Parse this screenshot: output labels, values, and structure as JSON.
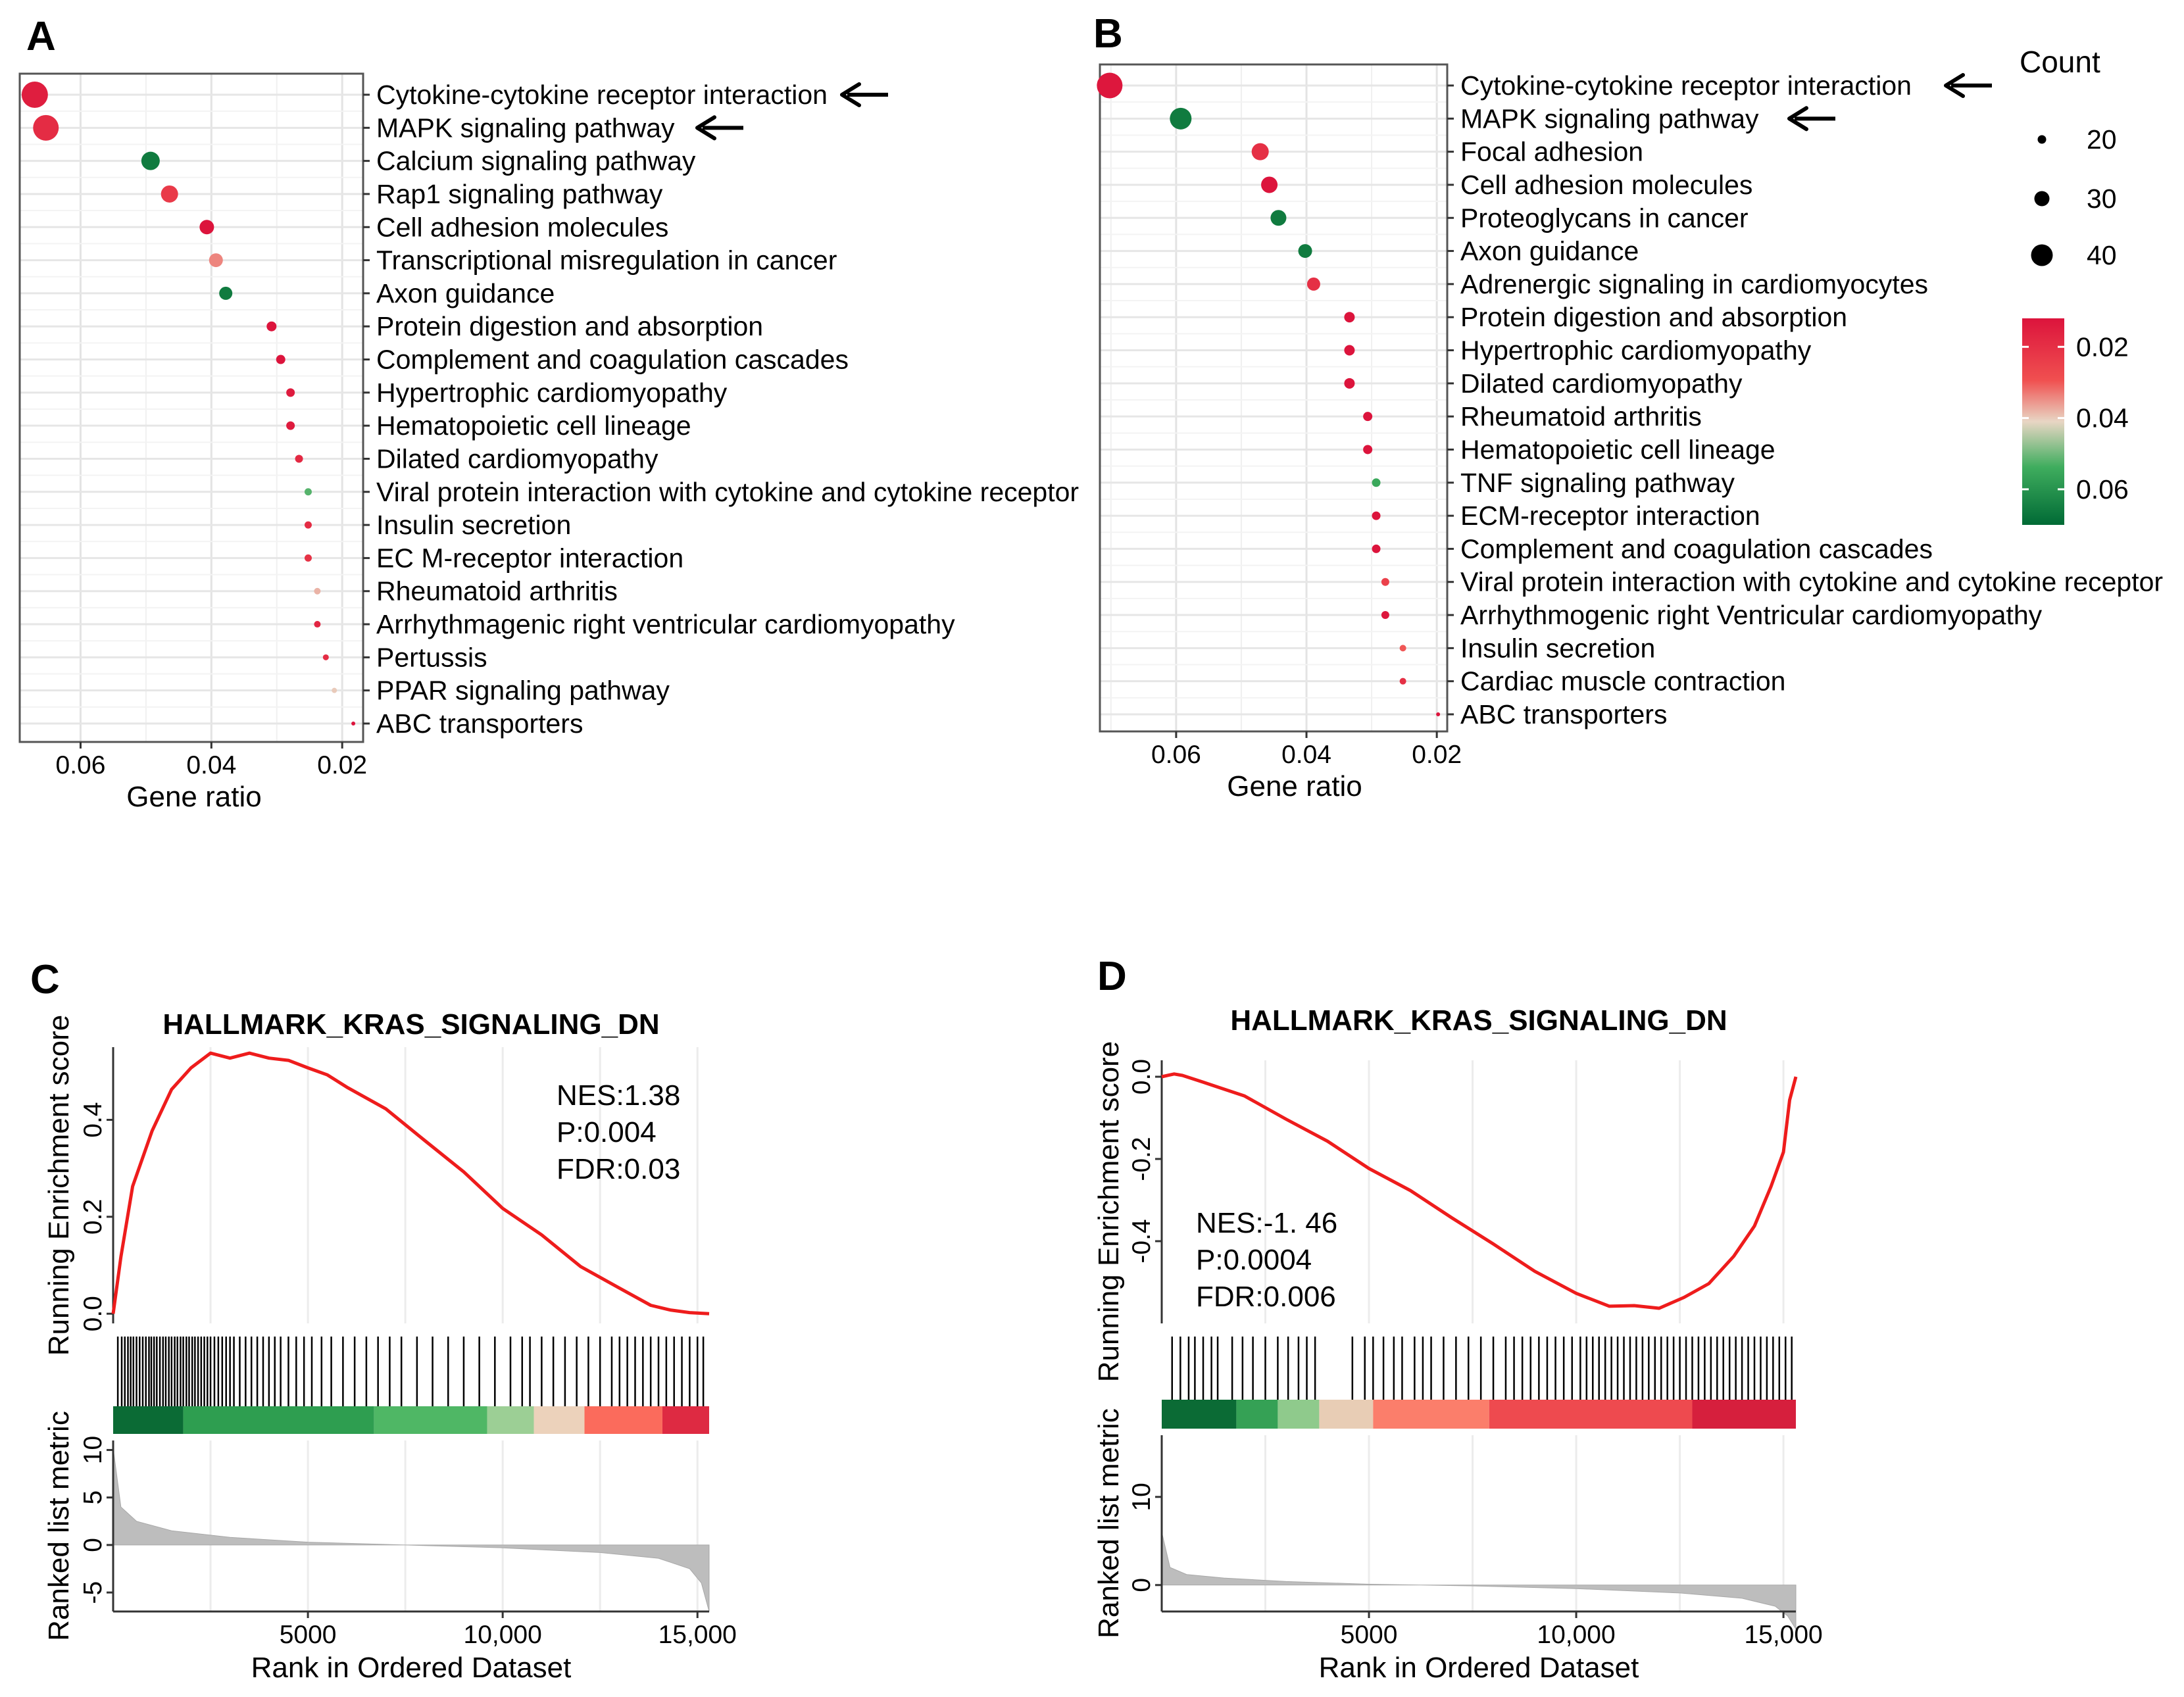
{
  "legend": {
    "count_title": "Count",
    "count_values": [
      20,
      30,
      40
    ],
    "count_labels": [
      "20",
      "30",
      "40"
    ],
    "color_labels": [
      "0.02",
      "0.04",
      "0.06"
    ],
    "color_values": [
      0.02,
      0.04,
      0.06
    ],
    "color_range": [
      0.012,
      0.07
    ],
    "colors": {
      "low": "#dc143c",
      "mid": "#e8d6c4",
      "high": "#006a35",
      "tint": "#f05050"
    }
  },
  "chart_data": [
    {
      "id": "A",
      "type": "scatter",
      "panel_letter": "A",
      "xlabel": "Gene ratio",
      "xlim": [
        0.0693,
        0.0168
      ],
      "xticks": [
        0.06,
        0.04,
        0.02
      ],
      "xtick_labels": [
        "0.06",
        "0.04",
        "0.02"
      ],
      "annotations": [
        "Cytokine-cytokine receptor interaction",
        "MAPK signaling pathway"
      ],
      "categories": [
        "Cytokine-cytokine receptor interaction",
        "MAPK signaling pathway",
        "Calcium signaling pathway",
        "Rap1 signaling pathway",
        "Cell adhesion molecules",
        "Transcriptional misregulation in cancer",
        "Axon guidance",
        "Protein digestion and absorption",
        "Complement and coagulation cascades",
        "Hypertrophic cardiomyopathy",
        "Hematopoietic cell lineage",
        "Dilated cardiomyopathy",
        "Viral protein interaction with cytokine and cytokine receptor",
        "Insulin secretion",
        "EC M-receptor interaction",
        "Rheumatoid arthritis",
        "Arrhythmagenic right ventricular cardiomyopathy",
        "Pertussis",
        "PPAR signaling pathway",
        "ABC transporters"
      ],
      "gene_ratio": [
        0.067,
        0.0653,
        0.0493,
        0.0464,
        0.0407,
        0.0393,
        0.0378,
        0.0308,
        0.0294,
        0.0279,
        0.0279,
        0.0266,
        0.0252,
        0.0252,
        0.0252,
        0.0238,
        0.0238,
        0.0225,
        0.0212,
        0.0183
      ],
      "count": [
        47,
        46,
        35,
        33,
        29,
        28,
        27,
        22,
        21,
        20,
        20,
        19,
        18,
        18,
        18,
        17,
        17,
        16,
        15,
        13
      ],
      "pvalue": [
        0.015,
        0.019,
        0.066,
        0.023,
        0.012,
        0.034,
        0.066,
        0.012,
        0.012,
        0.014,
        0.014,
        0.018,
        0.052,
        0.019,
        0.021,
        0.038,
        0.017,
        0.019,
        0.04,
        0.012
      ]
    },
    {
      "id": "B",
      "type": "scatter",
      "panel_letter": "B",
      "xlabel": "Gene ratio",
      "xlim": [
        0.0717,
        0.0184
      ],
      "xticks": [
        0.06,
        0.04,
        0.02
      ],
      "xtick_labels": [
        "0.06",
        "0.04",
        "0.02"
      ],
      "annotations": [
        "Cytokine-cytokine receptor interaction",
        "MAPK signaling pathway"
      ],
      "categories": [
        "Cytokine-cytokine receptor interaction",
        "MAPK signaling pathway",
        "Focal adhesion",
        "Cell adhesion molecules",
        "Proteoglycans in cancer",
        "Axon guidance",
        "Adrenergic signaling in cardiomyocytes",
        "Protein digestion and absorption",
        "Hypertrophic cardiomyopathy",
        "Dilated cardiomyopathy",
        "Rheumatoid arthritis",
        "Hematopoietic cell lineage",
        "TNF signaling pathway",
        "ECM-receptor interaction",
        "Complement and coagulation cascades",
        "Viral protein interaction with cytokine and cytokine receptor",
        "Arrhythmogenic right Ventricular cardiomyopathy",
        "Insulin secretion",
        "Cardiac muscle contraction",
        "ABC transporters"
      ],
      "gene_ratio": [
        0.0702,
        0.0593,
        0.0471,
        0.0457,
        0.0443,
        0.0402,
        0.0389,
        0.0334,
        0.0334,
        0.0334,
        0.0306,
        0.0306,
        0.0293,
        0.0293,
        0.0293,
        0.0279,
        0.0279,
        0.0252,
        0.0252,
        0.0198
      ],
      "count": [
        46,
        40,
        33,
        32,
        31,
        28,
        27,
        23,
        23,
        23,
        21,
        21,
        20,
        20,
        20,
        19,
        19,
        17,
        17,
        13
      ],
      "pvalue": [
        0.013,
        0.066,
        0.02,
        0.012,
        0.066,
        0.066,
        0.02,
        0.012,
        0.012,
        0.012,
        0.012,
        0.012,
        0.055,
        0.012,
        0.012,
        0.025,
        0.013,
        0.03,
        0.02,
        0.012
      ]
    },
    {
      "id": "C",
      "type": "line",
      "panel_letter": "C",
      "title": "HALLMARK_KRAS_SIGNALING_DN",
      "stats": [
        "NES:1.38",
        "P:0.004",
        "FDR:0.03"
      ],
      "ylabel_es": "Running Enrichment score",
      "ylabel_metric": "Ranked list metric",
      "xlabel": "Rank in Ordered Dataset",
      "xlim": [
        0,
        15300
      ],
      "xticks": [
        5000,
        10000,
        15000
      ],
      "xtick_labels": [
        "5000",
        "10,000",
        "15,000"
      ],
      "es_ylim": [
        -0.02,
        0.55
      ],
      "es_yticks": [
        0.0,
        0.2,
        0.4
      ],
      "es_ytick_labels": [
        "0.0",
        "0.2",
        "0.4"
      ],
      "es_x": [
        0,
        200,
        500,
        1000,
        1500,
        2000,
        2500,
        3000,
        3500,
        4000,
        4500,
        5000,
        5500,
        6000,
        7000,
        8000,
        9000,
        10000,
        11000,
        12000,
        13000,
        13800,
        14300,
        14800,
        15300
      ],
      "es_y": [
        0.0,
        0.12,
        0.26,
        0.38,
        0.46,
        0.51,
        0.535,
        0.53,
        0.535,
        0.53,
        0.52,
        0.51,
        0.49,
        0.47,
        0.42,
        0.36,
        0.29,
        0.22,
        0.16,
        0.1,
        0.05,
        0.02,
        0.005,
        0.005,
        0.0
      ],
      "metric_ylim": [
        -7,
        11
      ],
      "metric_yticks": [
        -5,
        0,
        5,
        10
      ],
      "metric_ytick_labels": [
        "-5",
        "0",
        "5",
        "10"
      ],
      "metric_x": [
        0,
        200,
        600,
        1500,
        3000,
        5000,
        7500,
        10000,
        12500,
        14000,
        14800,
        15100,
        15300
      ],
      "metric_y": [
        10.2,
        4.0,
        2.5,
        1.5,
        0.8,
        0.3,
        0.0,
        -0.3,
        -0.8,
        -1.4,
        -2.5,
        -4.0,
        -7.0
      ],
      "heat_segments": [
        {
          "from": 0,
          "to": 1800,
          "color": "#0b6b35"
        },
        {
          "from": 1800,
          "to": 6700,
          "color": "#2e9e50"
        },
        {
          "from": 6700,
          "to": 9600,
          "color": "#4fb765"
        },
        {
          "from": 9600,
          "to": 10800,
          "color": "#9ccf95"
        },
        {
          "from": 10800,
          "to": 12100,
          "color": "#ecd2bb"
        },
        {
          "from": 12100,
          "to": 14100,
          "color": "#fb6b5c"
        },
        {
          "from": 14100,
          "to": 15300,
          "color": "#de2a42"
        }
      ],
      "hit_ranks": [
        120,
        220,
        300,
        380,
        450,
        520,
        600,
        680,
        760,
        840,
        920,
        980,
        1050,
        1120,
        1200,
        1280,
        1350,
        1430,
        1500,
        1580,
        1650,
        1730,
        1800,
        1880,
        1950,
        2030,
        2100,
        2180,
        2260,
        2340,
        2420,
        2500,
        2600,
        2700,
        2800,
        2900,
        3000,
        3100,
        3250,
        3400,
        3550,
        3700,
        3850,
        4000,
        4150,
        4300,
        4500,
        4700,
        4900,
        5100,
        5350,
        5600,
        5900,
        6200,
        6500,
        6800,
        7100,
        7400,
        7800,
        8200,
        8600,
        9000,
        9400,
        9800,
        10200,
        10500,
        10700,
        11000,
        11300,
        11600,
        11900,
        12200,
        12500,
        12800,
        13000,
        13200,
        13400,
        13600,
        13800,
        14000,
        14200,
        14400,
        14600,
        14800,
        15000,
        15150
      ]
    },
    {
      "id": "D",
      "type": "line",
      "panel_letter": "D",
      "title": "HALLMARK_KRAS_SIGNALING_DN",
      "stats": [
        "NES:-1. 46",
        "P:0.0004",
        "FDR:0.006"
      ],
      "ylabel_es": "Running Enrichment score",
      "ylabel_metric": "Ranked list metric",
      "xlabel": "Rank in Ordered Dataset",
      "xlim": [
        0,
        15300
      ],
      "xticks": [
        5000,
        10000,
        15000
      ],
      "xtick_labels": [
        "5000",
        "10,000",
        "15,000"
      ],
      "es_ylim": [
        -0.6,
        0.04
      ],
      "es_yticks": [
        -0.4,
        -0.2,
        0.0
      ],
      "es_ytick_labels": [
        "-0.4",
        "-0.2",
        "0.0"
      ],
      "es_x": [
        0,
        300,
        500,
        1000,
        2000,
        3000,
        4000,
        5000,
        6000,
        7000,
        8000,
        9000,
        10000,
        10800,
        11400,
        12000,
        12600,
        13200,
        13800,
        14300,
        14700,
        15000,
        15150,
        15300
      ],
      "es_y": [
        0.0,
        0.01,
        0.0,
        -0.01,
        -0.05,
        -0.1,
        -0.16,
        -0.22,
        -0.28,
        -0.34,
        -0.41,
        -0.47,
        -0.53,
        -0.555,
        -0.56,
        -0.56,
        -0.54,
        -0.5,
        -0.44,
        -0.36,
        -0.27,
        -0.18,
        -0.06,
        0.0
      ],
      "metric_ylim": [
        -3,
        17
      ],
      "metric_yticks": [
        0,
        10
      ],
      "metric_ytick_labels": [
        "0",
        "10"
      ],
      "metric_x": [
        0,
        200,
        600,
        1500,
        3000,
        5000,
        7500,
        10000,
        12500,
        14000,
        14800,
        15100,
        15300
      ],
      "metric_y": [
        6.0,
        2.0,
        1.2,
        0.8,
        0.4,
        0.1,
        -0.1,
        -0.4,
        -0.9,
        -1.5,
        -2.4,
        -3.5,
        -5.0
      ],
      "heat_segments": [
        {
          "from": 0,
          "to": 1800,
          "color": "#0b6b35"
        },
        {
          "from": 1800,
          "to": 2800,
          "color": "#35a155"
        },
        {
          "from": 2800,
          "to": 3800,
          "color": "#8fca8c"
        },
        {
          "from": 3800,
          "to": 5100,
          "color": "#e8cdb5"
        },
        {
          "from": 5100,
          "to": 7900,
          "color": "#fb7e6b"
        },
        {
          "from": 7900,
          "to": 12800,
          "color": "#ee4a4f"
        },
        {
          "from": 12800,
          "to": 15300,
          "color": "#d61f3d"
        }
      ],
      "hit_ranks": [
        250,
        450,
        650,
        800,
        1000,
        1200,
        1350,
        1700,
        1950,
        2200,
        2500,
        2800,
        3050,
        3300,
        3500,
        3700,
        4600,
        4900,
        5100,
        5350,
        5600,
        5800,
        6100,
        6300,
        6500,
        6800,
        7100,
        7400,
        7700,
        8000,
        8300,
        8500,
        8700,
        8900,
        9100,
        9300,
        9500,
        9700,
        9900,
        10100,
        10250,
        10400,
        10550,
        10700,
        10850,
        11000,
        11150,
        11300,
        11450,
        11600,
        11750,
        11900,
        12050,
        12200,
        12350,
        12500,
        12650,
        12800,
        12950,
        13100,
        13250,
        13400,
        13550,
        13700,
        13850,
        14000,
        14150,
        14300,
        14450,
        14600,
        14750,
        14900,
        15050,
        15200
      ]
    }
  ]
}
